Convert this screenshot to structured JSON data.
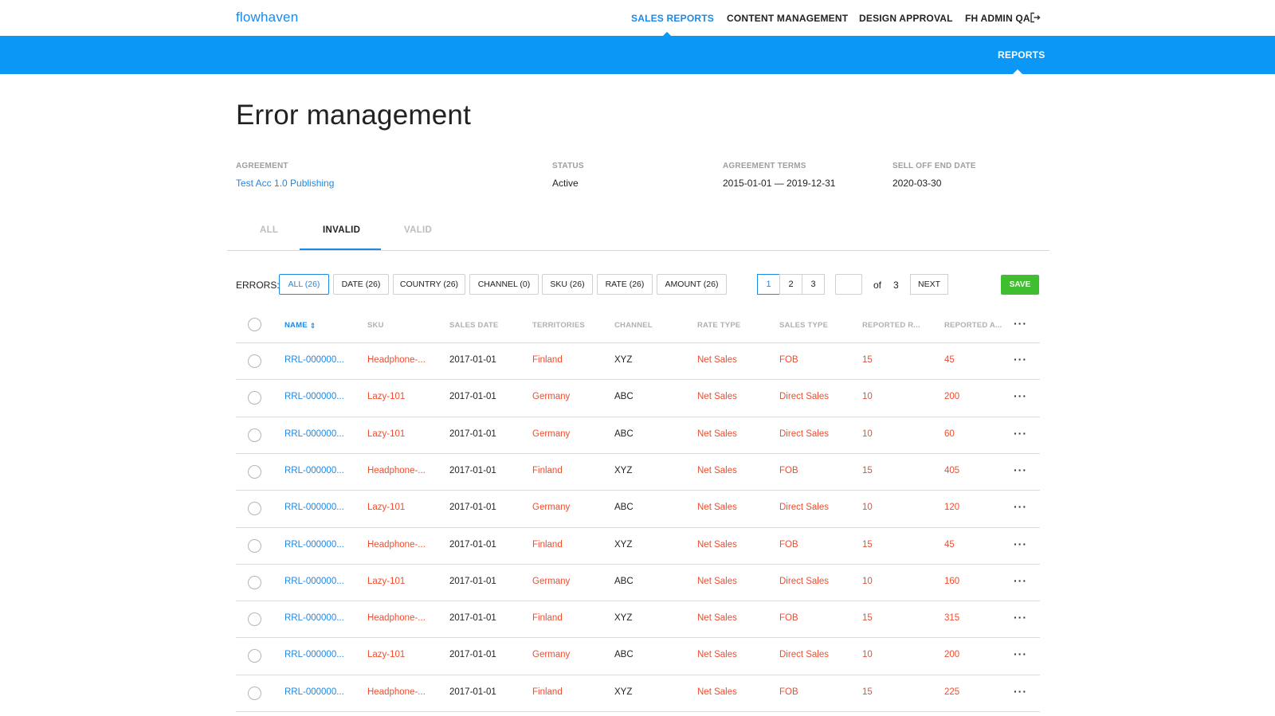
{
  "nav": {
    "logo": "flowhaven",
    "items": [
      "SALES REPORTS",
      "CONTENT MANAGEMENT",
      "DESIGN APPROVAL",
      "FH ADMIN QA"
    ],
    "active": "SALES REPORTS",
    "logout_icon": "logout-icon"
  },
  "subnav": {
    "items": [
      "REPORTS"
    ],
    "active": "REPORTS"
  },
  "page": {
    "title": "Error management"
  },
  "meta": {
    "agreement": {
      "label": "AGREEMENT",
      "value": "Test Acc 1.0 Publishing"
    },
    "status": {
      "label": "STATUS",
      "value": "Active"
    },
    "terms": {
      "label": "AGREEMENT TERMS",
      "value": "2015-01-01 — 2019-12-31"
    },
    "selloff": {
      "label": "SELL OFF END DATE",
      "value": "2020-03-30"
    }
  },
  "tabs": {
    "items": [
      "ALL",
      "INVALID",
      "VALID"
    ],
    "active": "INVALID"
  },
  "filters": {
    "label": "ERRORS:",
    "chips": [
      "ALL (26)",
      "DATE (26)",
      "COUNTRY (26)",
      "CHANNEL (0)",
      "SKU (26)",
      "RATE (26)",
      "AMOUNT (26)"
    ],
    "active": "ALL (26)"
  },
  "pagination": {
    "pages": [
      "1",
      "2",
      "3"
    ],
    "current": "1",
    "input_value": "",
    "of_label": "of",
    "total": "3",
    "next_label": "NEXT"
  },
  "save_label": "SAVE",
  "colors": {
    "accent": "#1e88e5",
    "bar": "#0a97f5",
    "error": "#ef4d2f",
    "save": "#3fbf2f"
  },
  "table": {
    "columns": [
      "NAME",
      "SKU",
      "SALES DATE",
      "TERRITORIES",
      "CHANNEL",
      "RATE TYPE",
      "SALES TYPE",
      "REPORTED R...",
      "REPORTED A..."
    ],
    "rows": [
      [
        "RRL-000000...",
        "Headphone-...",
        "2017-01-01",
        "Finland",
        "XYZ",
        "Net Sales",
        "FOB",
        "15",
        "45"
      ],
      [
        "RRL-000000...",
        "Lazy-101",
        "2017-01-01",
        "Germany",
        "ABC",
        "Net Sales",
        "Direct Sales",
        "10",
        "200"
      ],
      [
        "RRL-000000...",
        "Lazy-101",
        "2017-01-01",
        "Germany",
        "ABC",
        "Net Sales",
        "Direct Sales",
        "10",
        "60"
      ],
      [
        "RRL-000000...",
        "Headphone-...",
        "2017-01-01",
        "Finland",
        "XYZ",
        "Net Sales",
        "FOB",
        "15",
        "405"
      ],
      [
        "RRL-000000...",
        "Lazy-101",
        "2017-01-01",
        "Germany",
        "ABC",
        "Net Sales",
        "Direct Sales",
        "10",
        "120"
      ],
      [
        "RRL-000000...",
        "Headphone-...",
        "2017-01-01",
        "Finland",
        "XYZ",
        "Net Sales",
        "FOB",
        "15",
        "45"
      ],
      [
        "RRL-000000...",
        "Lazy-101",
        "2017-01-01",
        "Germany",
        "ABC",
        "Net Sales",
        "Direct Sales",
        "10",
        "160"
      ],
      [
        "RRL-000000...",
        "Headphone-...",
        "2017-01-01",
        "Finland",
        "XYZ",
        "Net Sales",
        "FOB",
        "15",
        "315"
      ],
      [
        "RRL-000000...",
        "Lazy-101",
        "2017-01-01",
        "Germany",
        "ABC",
        "Net Sales",
        "Direct Sales",
        "10",
        "200"
      ],
      [
        "RRL-000000...",
        "Headphone-...",
        "2017-01-01",
        "Finland",
        "XYZ",
        "Net Sales",
        "FOB",
        "15",
        "225"
      ]
    ]
  }
}
